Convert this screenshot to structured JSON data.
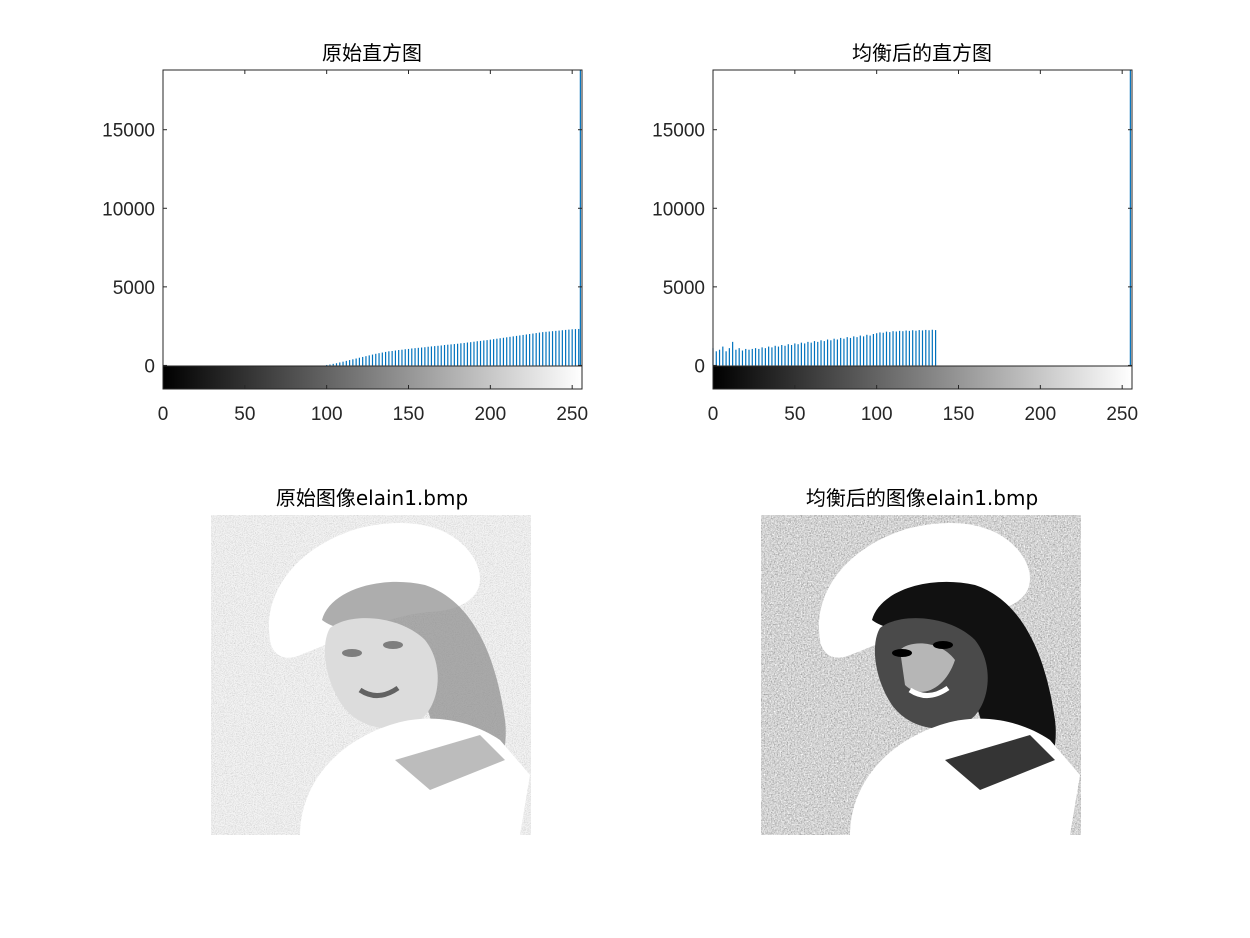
{
  "figure": {
    "panels": [
      {
        "title": "原始直方图"
      },
      {
        "title": "均衡后的直方图"
      },
      {
        "title": "原始图像elain1.bmp"
      },
      {
        "title": "均衡后的图像elain1.bmp"
      }
    ]
  },
  "chart_data": [
    {
      "type": "bar",
      "title": "原始直方图",
      "xlim": [
        0,
        256
      ],
      "ylim": [
        -1500,
        18800
      ],
      "x_ticks": [
        "0",
        "50",
        "100",
        "150",
        "200",
        "250"
      ],
      "y_ticks": [
        "0",
        "5000",
        "10000",
        "15000"
      ],
      "colorbar": "grayscale 0–255",
      "bar_color": "#0072bd",
      "series": [
        {
          "x": [
            100,
            102,
            104,
            106,
            108,
            110,
            112,
            114,
            116,
            118,
            120,
            122,
            124,
            126,
            128,
            130,
            132,
            134,
            136,
            138,
            140,
            142,
            144,
            146,
            148,
            150,
            152,
            154,
            156,
            158,
            160,
            162,
            164,
            166,
            168,
            170,
            172,
            174,
            176,
            178,
            180,
            182,
            184,
            186,
            188,
            190,
            192,
            194,
            196,
            198,
            200,
            202,
            204,
            206,
            208,
            210,
            212,
            214,
            216,
            218,
            220,
            222,
            224,
            226,
            228,
            230,
            232,
            234,
            236,
            238,
            240,
            242,
            244,
            246,
            248,
            250,
            252,
            254,
            255
          ],
          "values": [
            30,
            60,
            100,
            140,
            190,
            240,
            290,
            340,
            390,
            440,
            490,
            540,
            590,
            640,
            690,
            740,
            780,
            820,
            860,
            900,
            920,
            950,
            980,
            1000,
            1030,
            1050,
            1080,
            1100,
            1120,
            1140,
            1160,
            1190,
            1210,
            1230,
            1250,
            1270,
            1300,
            1320,
            1340,
            1360,
            1380,
            1410,
            1430,
            1460,
            1480,
            1510,
            1540,
            1560,
            1590,
            1610,
            1640,
            1670,
            1700,
            1730,
            1760,
            1790,
            1820,
            1850,
            1880,
            1910,
            1940,
            1970,
            2000,
            2030,
            2060,
            2090,
            2120,
            2140,
            2160,
            2180,
            2200,
            2220,
            2240,
            2260,
            2280,
            2300,
            2310,
            2320,
            18800
          ]
        }
      ]
    },
    {
      "type": "bar",
      "title": "均衡后的直方图",
      "xlim": [
        0,
        256
      ],
      "ylim": [
        -1500,
        18800
      ],
      "x_ticks": [
        "0",
        "50",
        "100",
        "150",
        "200",
        "250"
      ],
      "y_ticks": [
        "0",
        "5000",
        "10000",
        "15000"
      ],
      "colorbar": "grayscale 0–255",
      "bar_color": "#0072bd",
      "series": [
        {
          "x": [
            0,
            2,
            4,
            6,
            8,
            10,
            12,
            14,
            16,
            18,
            20,
            22,
            24,
            26,
            28,
            30,
            32,
            34,
            36,
            38,
            40,
            42,
            44,
            46,
            48,
            50,
            52,
            54,
            56,
            58,
            60,
            62,
            64,
            66,
            68,
            70,
            72,
            74,
            76,
            78,
            80,
            82,
            84,
            86,
            88,
            90,
            92,
            94,
            96,
            98,
            100,
            102,
            104,
            106,
            108,
            110,
            112,
            114,
            116,
            118,
            120,
            122,
            124,
            126,
            128,
            130,
            132,
            134,
            136,
            255
          ],
          "values": [
            1100,
            900,
            1000,
            1200,
            900,
            1100,
            1500,
            1000,
            1100,
            950,
            1050,
            1000,
            1050,
            1100,
            1050,
            1150,
            1100,
            1200,
            1150,
            1250,
            1200,
            1300,
            1250,
            1350,
            1300,
            1400,
            1350,
            1450,
            1400,
            1500,
            1450,
            1550,
            1500,
            1600,
            1550,
            1650,
            1600,
            1700,
            1650,
            1750,
            1700,
            1800,
            1750,
            1850,
            1800,
            1900,
            1850,
            1950,
            1900,
            2000,
            2050,
            2100,
            2080,
            2150,
            2120,
            2180,
            2160,
            2200,
            2180,
            2220,
            2200,
            2240,
            2210,
            2250,
            2230,
            2260,
            2240,
            2270,
            2250,
            18800
          ]
        }
      ]
    }
  ]
}
